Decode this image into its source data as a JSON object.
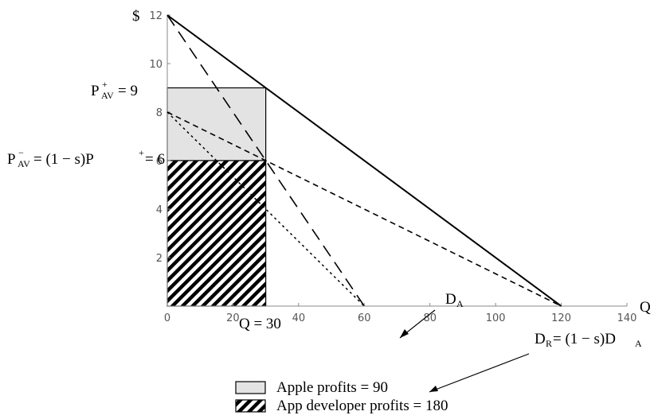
{
  "chart_data": {
    "type": "line",
    "axes": {
      "ylabel": "$",
      "xlabel": "Q",
      "xlim": [
        0,
        140
      ],
      "ylim": [
        0,
        12
      ],
      "xticks": [
        0,
        20,
        40,
        60,
        80,
        100,
        120,
        140
      ],
      "yticks": [
        2,
        4,
        6,
        8,
        10,
        12
      ],
      "grid": false
    },
    "series": [
      {
        "label": "D_A",
        "style": "solid",
        "x": [
          0,
          120
        ],
        "y": [
          12,
          0
        ]
      },
      {
        "label": "D_R = (1 − s)D_A",
        "style": "dashed",
        "x": [
          0,
          120
        ],
        "y": [
          8,
          0
        ]
      },
      {
        "label": "",
        "style": "long-dashed",
        "x": [
          0,
          60
        ],
        "y": [
          12,
          0
        ]
      },
      {
        "label": "",
        "style": "dotted",
        "x": [
          0,
          60
        ],
        "y": [
          8,
          0
        ]
      }
    ],
    "regions": [
      {
        "label": "Apple profits = 90",
        "fill": "light-gray",
        "x": [
          0,
          30
        ],
        "y": [
          6,
          9
        ]
      },
      {
        "label": "App developer profits = 180",
        "fill": "hatched",
        "x": [
          0,
          30
        ],
        "y": [
          0,
          6
        ]
      }
    ],
    "annotations": {
      "p_plus": {
        "main": "P",
        "sup": "+",
        "sub": "AV",
        "rest": " = 9",
        "value": 9
      },
      "p_minus": {
        "main": "P",
        "sup": "−",
        "sub": "AV",
        "rest": " = (1 − s)P",
        "sup2": "+",
        "rest2": " = 6",
        "value": 6
      },
      "q": {
        "text": "Q = 30",
        "value": 30
      },
      "da": {
        "main": "D",
        "sub": "A"
      },
      "dr": {
        "main": "D",
        "sub": "R",
        "rest": " = (1 − s)D",
        "sub2": "A"
      }
    },
    "legend": {
      "position": "bottom-center",
      "items": [
        {
          "text": "Apple profits = 90",
          "swatch": "light-gray"
        },
        {
          "text": "App developer profits = 180",
          "swatch": "hatched"
        }
      ]
    },
    "colors": {
      "apple_fill": "#e3e3e3",
      "line": "#000000",
      "axis": "#888888"
    }
  }
}
